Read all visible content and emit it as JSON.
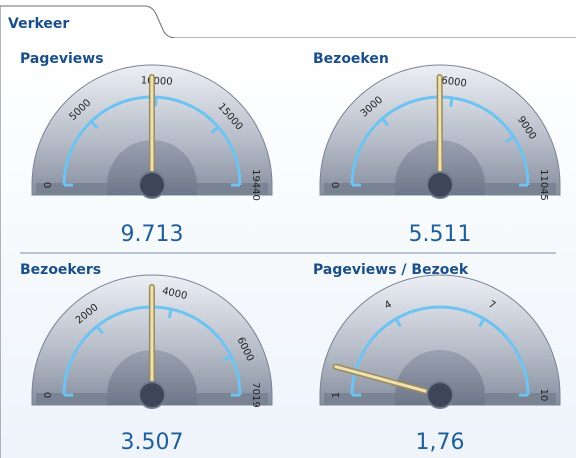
{
  "tab": "Verkeer",
  "chart_data": [
    {
      "type": "gauge",
      "title": "Pageviews",
      "values": [
        9713
      ],
      "value_labels": [
        "9.713"
      ],
      "ylim": [
        0,
        19440
      ],
      "yticks": [
        0,
        5000,
        10000,
        15000,
        19440
      ]
    },
    {
      "type": "gauge",
      "title": "Bezoeken",
      "values": [
        5511
      ],
      "value_labels": [
        "5.511"
      ],
      "ylim": [
        0,
        11045
      ],
      "yticks": [
        0,
        3000,
        6000,
        9000,
        11045
      ]
    },
    {
      "type": "gauge",
      "title": "Bezoekers",
      "values": [
        3507
      ],
      "value_labels": [
        "3.507"
      ],
      "ylim": [
        0,
        7019
      ],
      "yticks": [
        0,
        2000,
        4000,
        6000,
        7019
      ]
    },
    {
      "type": "gauge",
      "title": "Pageviews / Bezoek",
      "values": [
        1.76
      ],
      "value_labels": [
        "1,76"
      ],
      "ylim": [
        1,
        10
      ],
      "yticks": [
        1,
        4,
        7,
        10
      ]
    }
  ]
}
